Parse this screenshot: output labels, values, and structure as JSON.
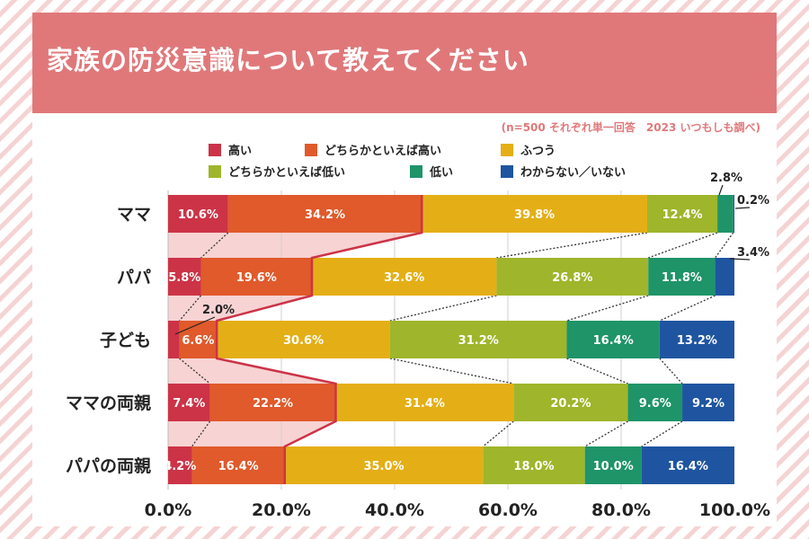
{
  "title": "家族の防災意識について教えてください",
  "note": "(n=500 それぞれ単一回答　2023 いつもしも調べ)",
  "chart_data": {
    "type": "bar",
    "orientation": "horizontal",
    "stacked": true,
    "title": "家族の防災意識について教えてください",
    "categories": [
      "ママ",
      "パパ",
      "子ども",
      "ママの両親",
      "パパの両親"
    ],
    "series": [
      {
        "name": "高い",
        "color": "#cc3347",
        "values": [
          10.6,
          5.8,
          2.0,
          7.4,
          4.2
        ]
      },
      {
        "name": "どちらかといえば高い",
        "color": "#e05a2b",
        "values": [
          34.2,
          19.6,
          6.6,
          22.2,
          16.4
        ]
      },
      {
        "name": "ふつう",
        "color": "#e4af16",
        "values": [
          39.8,
          32.6,
          30.6,
          31.4,
          35.0
        ]
      },
      {
        "name": "どちらかといえば低い",
        "color": "#9fb52b",
        "values": [
          12.4,
          26.8,
          31.2,
          20.2,
          18.0
        ]
      },
      {
        "name": "低い",
        "color": "#1e9468",
        "values": [
          2.8,
          11.8,
          16.4,
          9.6,
          10.0
        ]
      },
      {
        "name": "わからない／いない",
        "color": "#1f55a0",
        "values": [
          0.2,
          3.4,
          13.2,
          9.2,
          16.4
        ]
      }
    ],
    "labels": [
      [
        "10.6%",
        "34.2%",
        "39.8%",
        "12.4%",
        "2.8%",
        "0.2%"
      ],
      [
        "5.8%",
        "19.6%",
        "32.6%",
        "26.8%",
        "11.8%",
        "3.4%"
      ],
      [
        "2.0%",
        "6.6%",
        "30.6%",
        "31.2%",
        "16.4%",
        "13.2%"
      ],
      [
        "7.4%",
        "22.2%",
        "31.4%",
        "20.2%",
        "9.6%",
        "9.2%"
      ],
      [
        "4.2%",
        "16.4%",
        "35.0%",
        "18.0%",
        "10.0%",
        "16.4%"
      ]
    ],
    "outside_labels": [
      [
        4,
        5
      ],
      [
        5
      ],
      [
        0
      ],
      [],
      []
    ],
    "xlim": [
      0,
      100
    ],
    "xticks": [
      0,
      20,
      40,
      60,
      80,
      100
    ],
    "xtick_labels": [
      "0.0%",
      "20.0%",
      "40.0%",
      "60.0%",
      "80.0%",
      "100.0%"
    ],
    "grid": true,
    "highlight": {
      "series_through": 1,
      "fill": "#f7d3d3",
      "line_color": "#cc3347"
    },
    "legend_position": "top"
  }
}
